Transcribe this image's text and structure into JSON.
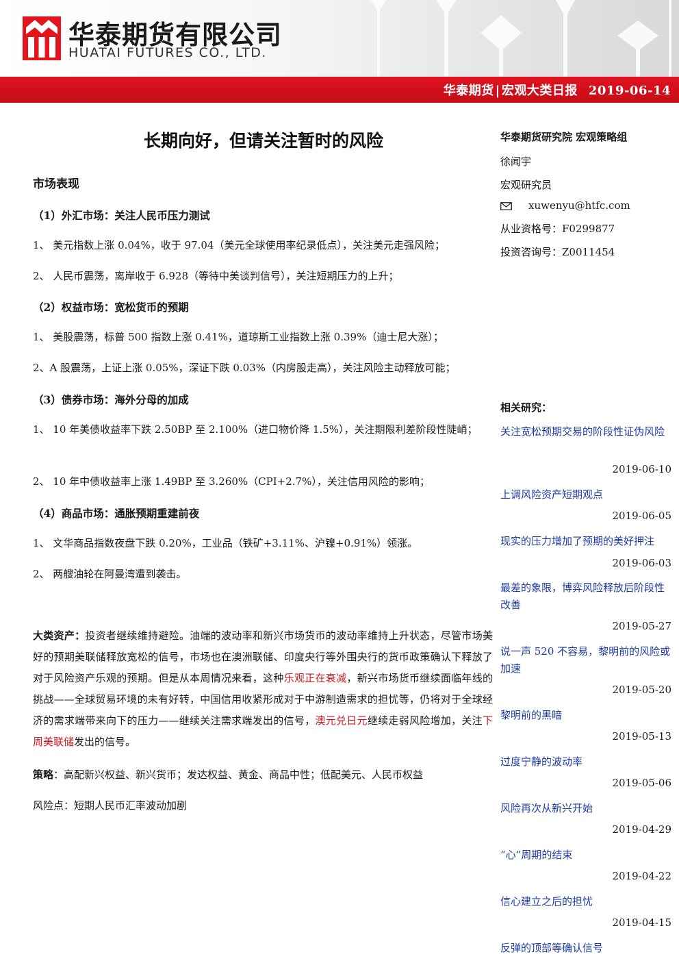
{
  "header": {
    "company_cn": "华泰期货有限公司",
    "company_en": "HUATAI FUTURES CO., LTD.",
    "band_brand": "华泰期货",
    "band_sep": "|",
    "band_series": "宏观大类日报",
    "band_date": "2019-06-14"
  },
  "report": {
    "title": "长期向好，但请关注暂时的风险",
    "section_title": "市场表现",
    "fx_title": "（1）外汇市场：关注人民币压力测试",
    "fx_1": "1、 美元指数上涨 0.04%，收于 97.04（美元全球使用率纪录低点），关注美元走强风险；",
    "fx_2": "2、 人民币震荡，离岸收于 6.928（等待中美谈判信号），关注短期压力的上升；",
    "eq_title": "（2）权益市场：宽松货币的预期",
    "eq_1": "1、 美股震荡，标普 500 指数上涨 0.41%，道琼斯工业指数上涨 0.39%（迪士尼大涨）；",
    "eq_2": "2、A 股震荡，上证上涨 0.05%，深证下跌 0.03%（内房股走高），关注风险主动释放可能；",
    "bond_title": "（3）债券市场：海外分母的加成",
    "bond_1": "1、 10 年美债收益率下跌 2.50BP 至 2.100%（进口物价降 1.5%），关注期限利差阶段性陡峭；",
    "bond_2": "2、 10 年中债收益率上涨 1.49BP 至 3.260%（CPI+2.7%），关注信用风险的影响；",
    "cmd_title": "（4）商品市场：通胀预期重建前夜",
    "cmd_1": "1、 文华商品指数夜盘下跌 0.20%，工业品（铁矿+3.11%、沪镍+0.91%）领涨。",
    "cmd_2": "2、 两艘油轮在阿曼湾遭到袭击。",
    "asset_label": "大类资产",
    "asset_colon": "：",
    "asset_t1": "投资者继续维持避险。油端的波动率和新兴市场货币的波动率维持上升状态，尽管市场美好的预期美联储释放宽松的信号，市场也在澳洲联储、印度央行等外围央行的货币政策确认下释放了对于风险资产乐观的预期。但是从本周情况来看，这种",
    "asset_r1": "乐观正在衰减",
    "asset_t2": "，新兴市场货币继续面临年线的挑战——全球贸易环境的未有好转，中国信用收紧形成对于中游制造需求的担忧等，仍将对于全球经济的需求端带来向下的压力——继续关注需求端发出的信号，",
    "asset_r2": "澳元兑日元",
    "asset_t3": "继续走弱风险增加，关注",
    "asset_r3": "下周美联储",
    "asset_t4": "发出的信号。",
    "strategy_label": "策略",
    "strategy_text": "：高配新兴权益、新兴货币；发达权益、黄金、商品中性；低配美元、人民币权益",
    "risk_text": "风险点：短期人民币汇率波动加剧"
  },
  "sidebar": {
    "org": "华泰期货研究院 宏观策略组",
    "author": "徐闻宇",
    "role": "宏观研究员",
    "email": "xuwenyu@htfc.com",
    "license": "从业资格号：F0299877",
    "consult": "投资咨询号：Z0011454",
    "related_title": "相关研究：",
    "related": [
      {
        "title": "关注宽松预期交易的阶段性证伪风险",
        "date": "2019-06-10"
      },
      {
        "title": "上调风险资产短期观点",
        "date": "2019-06-05"
      },
      {
        "title": "现实的压力增加了预期的美好押注",
        "date": "2019-06-03"
      },
      {
        "title": "最差的象限，博弈风险释放后阶段性改善",
        "date": "2019-05-27"
      },
      {
        "title": "说一声 520 不容易，黎明前的风险或加速",
        "date": "2019-05-20"
      },
      {
        "title": "黎明前的黑暗",
        "date": "2019-05-13"
      },
      {
        "title": "过度宁静的波动率",
        "date": "2019-05-06"
      },
      {
        "title": "风险再次从新兴开始",
        "date": "2019-04-29"
      },
      {
        "title": "“心”周期的结束",
        "date": "2019-04-22"
      },
      {
        "title": "信心建立之后的担忧",
        "date": "2019-04-15"
      },
      {
        "title": "反弹的顶部等确认信号",
        "date": ""
      }
    ]
  },
  "colors": {
    "brand_red": "#d0161f",
    "link_blue": "#1e3ca8"
  }
}
